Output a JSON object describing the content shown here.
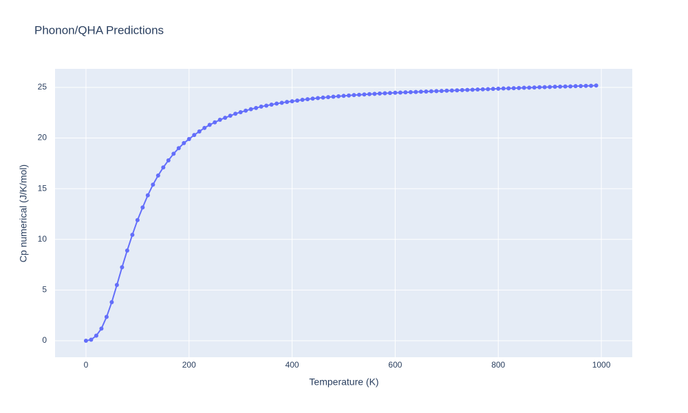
{
  "chart_data": {
    "type": "line",
    "title": "Phonon/QHA Predictions",
    "x_label": "Temperature (K)",
    "y_label": "Cp numerical (J/K/mol)",
    "xlim": [
      -60,
      1060
    ],
    "ylim": [
      -1.63,
      26.83
    ],
    "xticks": [
      0,
      200,
      400,
      600,
      800,
      1000
    ],
    "yticks": [
      0,
      5,
      10,
      15,
      20,
      25
    ],
    "grid": true,
    "x": [
      0,
      10,
      20,
      30,
      40,
      50,
      60,
      70,
      80,
      90,
      100,
      110,
      120,
      130,
      140,
      150,
      160,
      170,
      180,
      190,
      200,
      210,
      220,
      230,
      240,
      250,
      260,
      270,
      280,
      290,
      300,
      310,
      320,
      330,
      340,
      350,
      360,
      370,
      380,
      390,
      400,
      410,
      420,
      430,
      440,
      450,
      460,
      470,
      480,
      490,
      500,
      510,
      520,
      530,
      540,
      550,
      560,
      570,
      580,
      590,
      600,
      610,
      620,
      630,
      640,
      650,
      660,
      670,
      680,
      690,
      700,
      710,
      720,
      730,
      740,
      750,
      760,
      770,
      780,
      790,
      800,
      810,
      820,
      830,
      840,
      850,
      860,
      870,
      880,
      890,
      900,
      910,
      920,
      930,
      940,
      950,
      960,
      970,
      980,
      990
    ],
    "series": [
      {
        "name": "Cp numerical",
        "color": "#636efa",
        "values": [
          0,
          0.1,
          0.5,
          1.2,
          2.35,
          3.8,
          5.5,
          7.25,
          8.9,
          10.45,
          11.9,
          13.15,
          14.35,
          15.4,
          16.3,
          17.1,
          17.8,
          18.45,
          19.0,
          19.5,
          19.9,
          20.3,
          20.65,
          21.0,
          21.3,
          21.55,
          21.8,
          22.0,
          22.2,
          22.4,
          22.55,
          22.7,
          22.85,
          22.97,
          23.1,
          23.2,
          23.3,
          23.4,
          23.48,
          23.56,
          23.63,
          23.7,
          23.77,
          23.83,
          23.89,
          23.94,
          23.99,
          24.04,
          24.08,
          24.12,
          24.16,
          24.2,
          24.24,
          24.27,
          24.3,
          24.33,
          24.36,
          24.39,
          24.42,
          24.44,
          24.47,
          24.49,
          24.51,
          24.53,
          24.55,
          24.57,
          24.59,
          24.61,
          24.63,
          24.65,
          24.67,
          24.69,
          24.71,
          24.73,
          24.75,
          24.77,
          24.79,
          24.81,
          24.83,
          24.85,
          24.87,
          24.89,
          24.9,
          24.92,
          24.94,
          24.96,
          24.97,
          24.99,
          25.01,
          25.02,
          25.04,
          25.06,
          25.07,
          25.09,
          25.1,
          25.12,
          25.13,
          25.15,
          25.16,
          25.18
        ]
      }
    ]
  }
}
